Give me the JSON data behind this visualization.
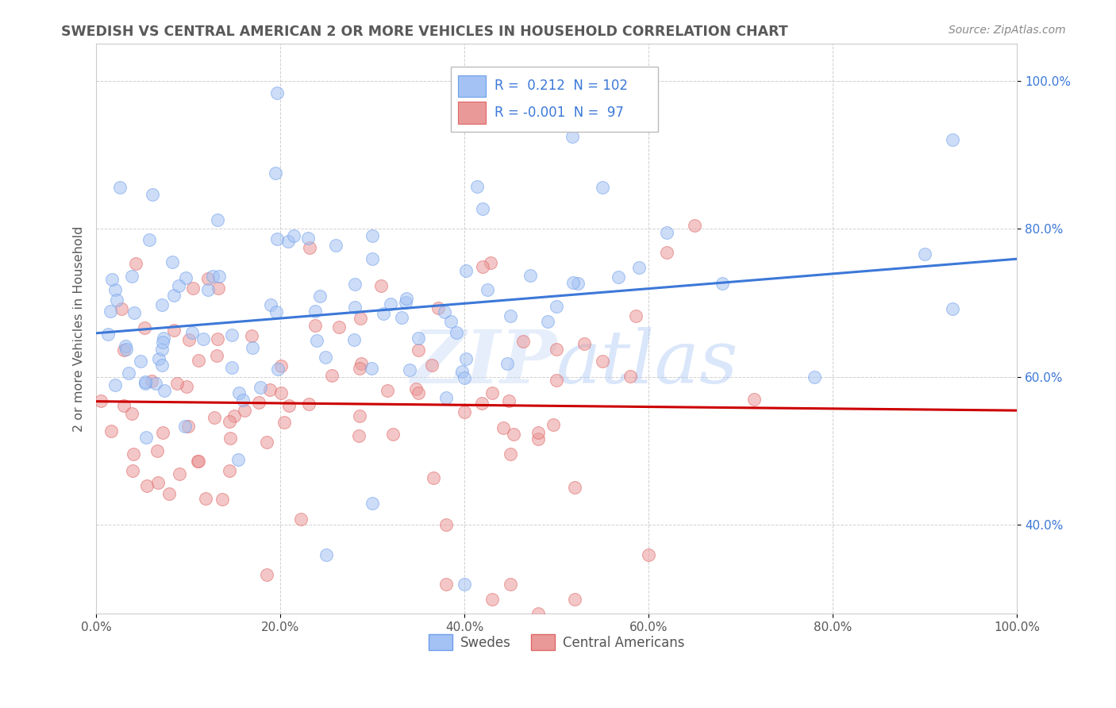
{
  "title": "SWEDISH VS CENTRAL AMERICAN 2 OR MORE VEHICLES IN HOUSEHOLD CORRELATION CHART",
  "source": "Source: ZipAtlas.com",
  "ylabel": "2 or more Vehicles in Household",
  "xlim": [
    0.0,
    1.0
  ],
  "ylim": [
    0.28,
    1.05
  ],
  "xticks": [
    0.0,
    0.2,
    0.4,
    0.6,
    0.8,
    1.0
  ],
  "yticks": [
    0.4,
    0.6,
    0.8,
    1.0
  ],
  "xtick_labels": [
    "0.0%",
    "20.0%",
    "40.0%",
    "60.0%",
    "80.0%",
    "100.0%"
  ],
  "ytick_labels": [
    "40.0%",
    "60.0%",
    "80.0%",
    "100.0%"
  ],
  "blue_R": 0.212,
  "blue_N": 102,
  "pink_R": -0.001,
  "pink_N": 97,
  "blue_color": "#a4c2f4",
  "pink_color": "#ea9999",
  "blue_edge_color": "#6d9eeb",
  "pink_edge_color": "#e06666",
  "blue_line_color": "#3c78d8",
  "pink_line_color": "#cc0000",
  "legend_label_blue": "Swedes",
  "legend_label_pink": "Central Americans",
  "background_color": "#ffffff",
  "grid_color": "#b0b0b0",
  "watermark_text": "ZIPatlas",
  "title_color": "#595959",
  "axis_label_color": "#595959",
  "tick_color": "#3c78d8",
  "source_color": "#888888"
}
